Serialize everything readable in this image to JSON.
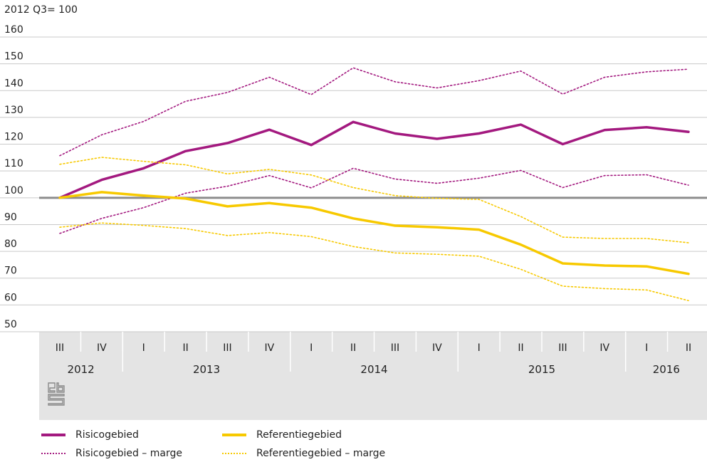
{
  "chart_data": {
    "type": "line",
    "ylabel": "2012 Q3= 100",
    "ylim": [
      50,
      160
    ],
    "yticks": [
      50,
      60,
      70,
      80,
      90,
      100,
      110,
      120,
      130,
      140,
      150,
      160
    ],
    "grid": true,
    "reference_line": 100,
    "categories": [
      "III",
      "IV",
      "I",
      "II",
      "III",
      "IV",
      "I",
      "II",
      "III",
      "IV",
      "I",
      "II",
      "III",
      "IV",
      "I",
      "II"
    ],
    "years": [
      {
        "label": "2012",
        "start": 0,
        "end": 1
      },
      {
        "label": "2013",
        "start": 2,
        "end": 5
      },
      {
        "label": "2014",
        "start": 6,
        "end": 9
      },
      {
        "label": "2015",
        "start": 10,
        "end": 13
      },
      {
        "label": "2016",
        "start": 14,
        "end": 15
      }
    ],
    "legend_position": "bottom-left",
    "series": [
      {
        "name": "Risicogebied",
        "style": "solid",
        "color": "#a3197f",
        "values": [
          100,
          106.7,
          111,
          117.4,
          120.4,
          125.4,
          119.7,
          128.3,
          124,
          122,
          124,
          127.3,
          120,
          125.3,
          126.3,
          124.6
        ]
      },
      {
        "name": "Risicogebied – marge",
        "style": "dotted",
        "color": "#a3197f",
        "band": "upper",
        "values": [
          115.7,
          123.5,
          128.5,
          136,
          139.3,
          145,
          138.5,
          148.5,
          143.3,
          141,
          143.7,
          147.3,
          138.7,
          145,
          147,
          148
        ]
      },
      {
        "name": "Risicogebied – marge",
        "style": "dotted",
        "color": "#a3197f",
        "band": "lower",
        "values": [
          86.7,
          92.3,
          96.3,
          101.7,
          104.3,
          108.3,
          103.7,
          111,
          107,
          105.4,
          107.3,
          110.2,
          103.8,
          108.3,
          108.6,
          104.7
        ]
      },
      {
        "name": "Referentiegebied",
        "style": "solid",
        "color": "#f7c900",
        "values": [
          100,
          102.1,
          100.8,
          99.7,
          96.8,
          98,
          96.3,
          92.3,
          89.6,
          89,
          88.1,
          82.5,
          75.5,
          74.7,
          74.4,
          71.6
        ]
      },
      {
        "name": "Referentiegebied – marge",
        "style": "dotted",
        "color": "#f7c900",
        "band": "upper",
        "values": [
          112.5,
          115.1,
          113.6,
          112.3,
          108.9,
          110.6,
          108.5,
          103.8,
          100.8,
          99.8,
          99.4,
          93,
          85.3,
          84.8,
          84.8,
          83.2
        ]
      },
      {
        "name": "Referentiegebied – marge",
        "style": "dotted",
        "color": "#f7c900",
        "band": "lower",
        "values": [
          89,
          90.6,
          89.7,
          88.5,
          85.9,
          87,
          85.5,
          81.8,
          79.4,
          78.9,
          78.2,
          73.3,
          67,
          66.1,
          65.6,
          61.6
        ]
      }
    ]
  },
  "legend": [
    {
      "label": "Risicogebied",
      "style": "solid",
      "color": "#a3197f"
    },
    {
      "label": "Referentiegebied",
      "style": "solid",
      "color": "#f7c900"
    },
    {
      "label": "Risicogebied – marge",
      "style": "dotted",
      "color": "#a3197f"
    },
    {
      "label": "Referentiegebied – marge",
      "style": "dotted",
      "color": "#f7c900"
    }
  ],
  "logo": "cbs-logo-icon"
}
